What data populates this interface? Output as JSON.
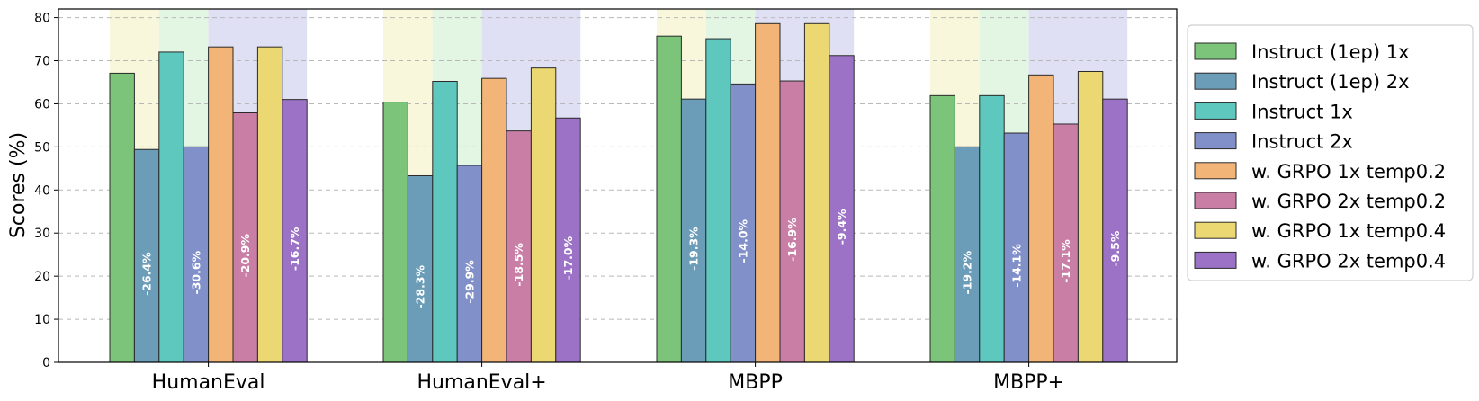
{
  "chart_data": {
    "type": "bar",
    "title": "",
    "xlabel": "",
    "ylabel": "Scores (%)",
    "ylim": [
      0,
      82
    ],
    "yticks": [
      0,
      10,
      20,
      30,
      40,
      50,
      60,
      70,
      80
    ],
    "grid": "horizontal dashed",
    "legend_position": "right",
    "categories": [
      "HumanEval",
      "HumanEval+",
      "MBPP",
      "MBPP+"
    ],
    "series": [
      {
        "name": "Instruct (1ep) 1x",
        "color": "#7bc47a",
        "values": [
          67.1,
          60.4,
          75.7,
          61.9
        ]
      },
      {
        "name": "Instruct (1ep) 2x",
        "color": "#6b9db8",
        "values": [
          49.4,
          43.3,
          61.1,
          50.0
        ]
      },
      {
        "name": "Instruct 1x",
        "color": "#5ec8be",
        "values": [
          72.0,
          65.2,
          75.1,
          61.9
        ]
      },
      {
        "name": "Instruct 2x",
        "color": "#8290ca",
        "values": [
          50.0,
          45.7,
          64.6,
          53.2
        ]
      },
      {
        "name": "w. GRPO 1x temp0.2",
        "color": "#f2b577",
        "values": [
          73.2,
          65.9,
          78.6,
          66.7
        ]
      },
      {
        "name": "w. GRPO 2x temp0.2",
        "color": "#c97ea6",
        "values": [
          57.9,
          53.7,
          65.3,
          55.3
        ]
      },
      {
        "name": "w. GRPO 1x temp0.4",
        "color": "#ecd872",
        "values": [
          73.2,
          68.3,
          78.6,
          67.5
        ]
      },
      {
        "name": "w. GRPO 2x temp0.4",
        "color": "#9c72c6",
        "values": [
          61.0,
          56.7,
          71.2,
          61.1
        ]
      }
    ],
    "annotations": [
      {
        "series": 1,
        "labels": [
          "-26.4%",
          "-28.3%",
          "-19.3%",
          "-19.2%"
        ]
      },
      {
        "series": 3,
        "labels": [
          "-30.6%",
          "-29.9%",
          "-14.0%",
          "-14.1%"
        ]
      },
      {
        "series": 5,
        "labels": [
          "-20.9%",
          "-18.5%",
          "-16.9%",
          "-17.1%"
        ]
      },
      {
        "series": 7,
        "labels": [
          "-16.7%",
          "-17.0%",
          "-9.4%",
          "-9.5%"
        ]
      }
    ],
    "background_bands": [
      {
        "series_from": 0,
        "series_to": 1,
        "color": "#f5f3cf"
      },
      {
        "series_from": 2,
        "series_to": 3,
        "color": "#d9f2d9"
      },
      {
        "series_from": 4,
        "series_to": 7,
        "color": "#d6d5f2"
      }
    ]
  }
}
